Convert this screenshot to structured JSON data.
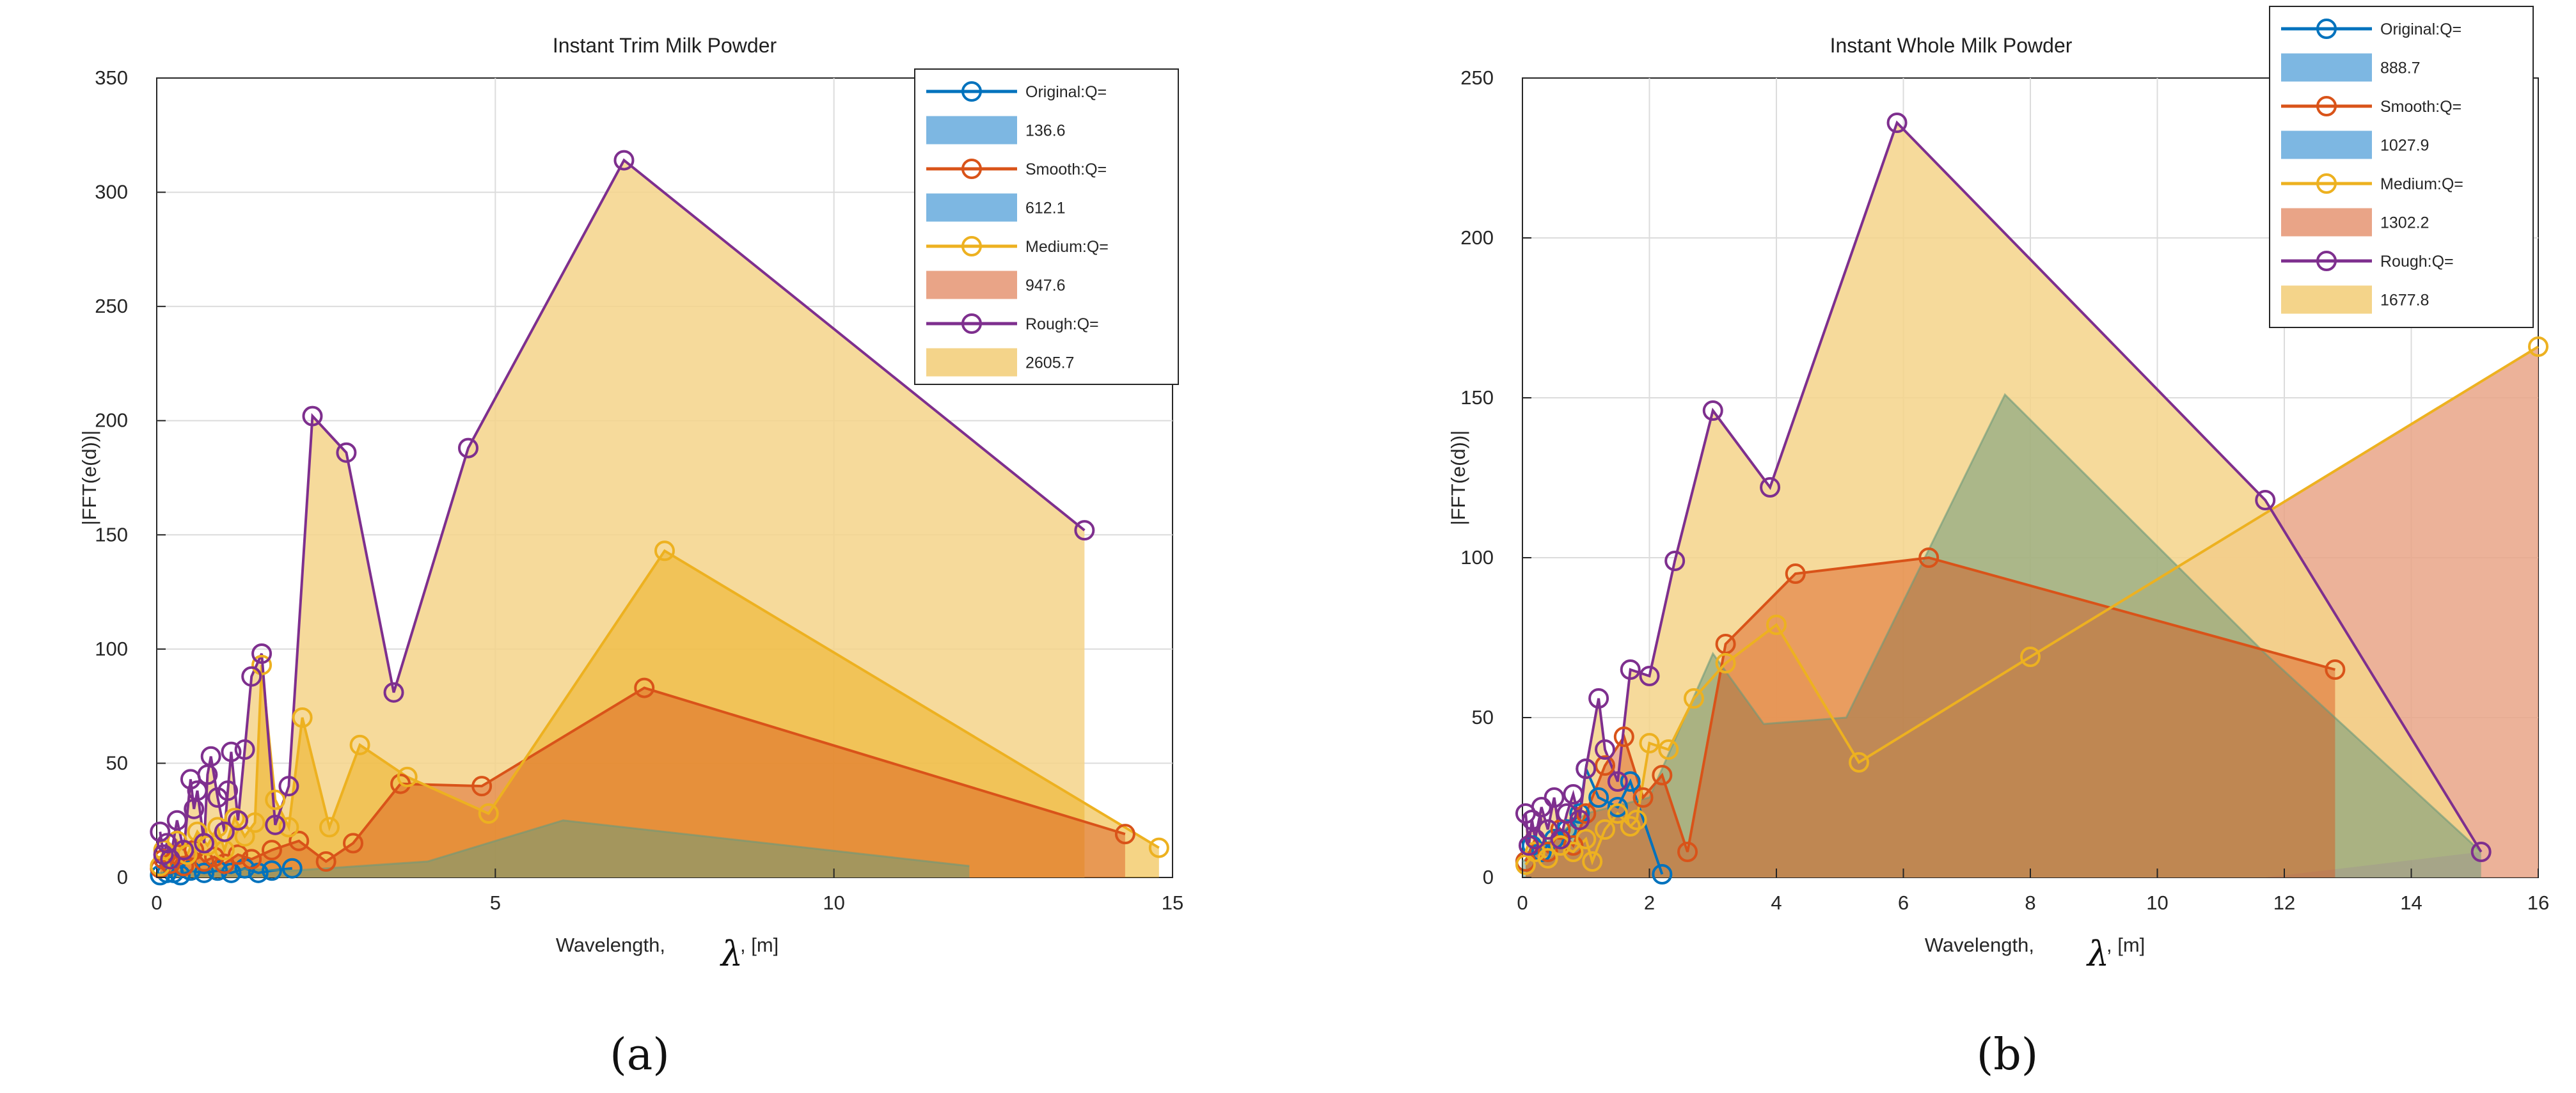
{
  "colors": {
    "original": "#0072BD",
    "smooth": "#D95319",
    "medium": "#EDB120",
    "rough": "#7E2F8E",
    "fill_blue": "#7DB7E2",
    "fill_red": "#E9A487",
    "fill_yellow": "#F4D48A",
    "fill_green": "#6E9A7A"
  },
  "chart_data": [
    {
      "panel": "a",
      "panel_label": "(a)",
      "type": "area",
      "title": "Instant Trim Milk Powder",
      "xlabel": "Wavelength,",
      "xlabel_symbol": "λ",
      "xlabel_unit": ", [m]",
      "ylabel": "|FFT(e(d))|",
      "xlim": [
        0,
        15
      ],
      "ylim": [
        0,
        350
      ],
      "xticks": [
        0,
        5,
        10,
        15
      ],
      "yticks": [
        0,
        50,
        100,
        150,
        200,
        250,
        300,
        350
      ],
      "grid": true,
      "legend_placement": "top-right",
      "legend": [
        {
          "line": "Original:Q=",
          "swatch": "136.6",
          "fill": "blue"
        },
        {
          "line": "Smooth:Q=",
          "swatch": "612.1",
          "fill": "blue"
        },
        {
          "line": "Medium:Q=",
          "swatch": "947.6",
          "fill": "red"
        },
        {
          "line": "Rough:Q=",
          "swatch": "2605.7",
          "fill": "yellow"
        }
      ],
      "series": [
        {
          "name": "Original",
          "color": "original",
          "x": [
            0.05,
            0.15,
            0.25,
            0.35,
            0.5,
            0.7,
            0.9,
            1.1,
            1.3,
            1.5,
            1.7,
            2.0
          ],
          "y": [
            1,
            2,
            2,
            1,
            3,
            2,
            3,
            2,
            4,
            2,
            3,
            4
          ]
        },
        {
          "name": "Smooth",
          "color": "smooth",
          "x": [
            0.05,
            0.1,
            0.2,
            0.3,
            0.4,
            0.55,
            0.7,
            0.85,
            1.0,
            1.2,
            1.4,
            1.7,
            2.1,
            2.5,
            2.9,
            3.6,
            4.8,
            7.2,
            14.3
          ],
          "y": [
            4,
            8,
            6,
            10,
            5,
            12,
            7,
            9,
            6,
            10,
            8,
            12,
            16,
            7,
            15,
            41,
            40,
            83,
            19
          ]
        },
        {
          "name": "Medium",
          "color": "medium",
          "x": [
            0.05,
            0.1,
            0.2,
            0.3,
            0.45,
            0.6,
            0.75,
            0.9,
            1.0,
            1.15,
            1.3,
            1.45,
            1.55,
            1.75,
            1.95,
            2.15,
            2.55,
            3.0,
            3.7,
            4.9,
            7.5,
            14.8
          ],
          "y": [
            5,
            12,
            8,
            16,
            10,
            20,
            14,
            22,
            12,
            26,
            18,
            24,
            93,
            34,
            22,
            70,
            22,
            58,
            44,
            28,
            143,
            13
          ]
        },
        {
          "name": "Green",
          "color": "fill_green",
          "no_markers": true,
          "fill": "green",
          "x": [
            0.0,
            1.0,
            2.0,
            3.0,
            4.0,
            6.0,
            12.0
          ],
          "y": [
            2,
            4,
            3,
            5,
            7,
            25,
            5
          ]
        },
        {
          "name": "Rough",
          "color": "rough",
          "x": [
            0.05,
            0.1,
            0.15,
            0.2,
            0.3,
            0.4,
            0.5,
            0.55,
            0.6,
            0.7,
            0.75,
            0.8,
            0.9,
            1.0,
            1.05,
            1.1,
            1.2,
            1.3,
            1.4,
            1.55,
            1.75,
            1.95,
            2.3,
            2.8,
            3.5,
            4.6,
            6.9,
            13.7
          ],
          "y": [
            20,
            10,
            15,
            8,
            25,
            12,
            43,
            30,
            38,
            15,
            45,
            53,
            35,
            20,
            38,
            55,
            25,
            56,
            88,
            98,
            23,
            40,
            202,
            186,
            81,
            188,
            314,
            152
          ]
        }
      ],
      "fills": [
        {
          "series": "Rough",
          "fill": "yellow",
          "to_x": 13.7
        },
        {
          "series": "Medium",
          "fill": "orange",
          "to_x": 14.8
        },
        {
          "series": "Smooth",
          "fill": "redorange",
          "to_x": 14.3
        },
        {
          "series": "Green",
          "fill": "green",
          "to_x": 12.0
        }
      ]
    },
    {
      "panel": "b",
      "panel_label": "(b)",
      "type": "area",
      "title": "Instant Whole Milk Powder",
      "xlabel": "Wavelength,",
      "xlabel_symbol": "λ",
      "xlabel_unit": ", [m]",
      "ylabel": "|FFT(e(d))|",
      "xlim": [
        0,
        16
      ],
      "ylim": [
        0,
        250
      ],
      "xticks": [
        0,
        2,
        4,
        6,
        8,
        10,
        12,
        14,
        16
      ],
      "yticks": [
        0,
        50,
        100,
        150,
        200,
        250
      ],
      "grid": true,
      "legend_placement": "top-right",
      "legend": [
        {
          "line": "Original:Q=",
          "swatch": "888.7",
          "fill": "blue"
        },
        {
          "line": "Smooth:Q=",
          "swatch": "1027.9",
          "fill": "blue"
        },
        {
          "line": "Medium:Q=",
          "swatch": "1302.2",
          "fill": "red"
        },
        {
          "line": "Rough:Q=",
          "swatch": "1677.8",
          "fill": "yellow"
        }
      ],
      "series": [
        {
          "name": "Original",
          "color": "original",
          "x": [
            0.05,
            0.15,
            0.3,
            0.5,
            0.7,
            0.9,
            1.0,
            1.2,
            1.5,
            1.7,
            2.2
          ],
          "y": [
            5,
            10,
            8,
            12,
            15,
            20,
            34,
            25,
            22,
            30,
            1
          ]
        },
        {
          "name": "Green",
          "color": "fill_green",
          "no_markers": true,
          "fill": "green",
          "x": [
            0.0,
            1.0,
            2.0,
            3.0,
            3.8,
            5.1,
            7.6,
            11.7,
            15.1
          ],
          "y": [
            5,
            20,
            25,
            70,
            48,
            50,
            151,
            70,
            8
          ]
        },
        {
          "name": "Smooth",
          "color": "smooth",
          "x": [
            0.05,
            0.2,
            0.4,
            0.6,
            0.8,
            1.0,
            1.3,
            1.6,
            1.9,
            2.2,
            2.6,
            3.2,
            4.3,
            6.4,
            12.8
          ],
          "y": [
            5,
            12,
            8,
            15,
            10,
            20,
            35,
            44,
            25,
            32,
            8,
            73,
            95,
            100,
            65
          ]
        },
        {
          "name": "Medium",
          "color": "medium",
          "x": [
            0.05,
            0.2,
            0.4,
            0.6,
            0.8,
            1.0,
            1.1,
            1.3,
            1.5,
            1.7,
            1.8,
            2.0,
            2.3,
            2.7,
            3.2,
            4.0,
            5.3,
            8.0,
            16.0
          ],
          "y": [
            4,
            8,
            6,
            10,
            8,
            12,
            5,
            15,
            20,
            16,
            18,
            42,
            40,
            56,
            67,
            79,
            36,
            69,
            166
          ]
        },
        {
          "name": "Rough",
          "color": "rough",
          "x": [
            0.05,
            0.1,
            0.15,
            0.2,
            0.3,
            0.4,
            0.5,
            0.6,
            0.7,
            0.8,
            0.9,
            1.0,
            1.2,
            1.3,
            1.5,
            1.7,
            2.0,
            2.4,
            3.0,
            3.9,
            5.9,
            11.7,
            15.1
          ],
          "y": [
            20,
            10,
            18,
            12,
            22,
            15,
            25,
            12,
            20,
            26,
            18,
            34,
            56,
            40,
            30,
            65,
            63,
            99,
            146,
            122,
            236,
            118,
            8
          ]
        }
      ],
      "fills": [
        {
          "series": "Medium",
          "fill": "red",
          "to_x": 16.0
        },
        {
          "series": "Rough",
          "fill": "yellow",
          "to_x": 11.7
        },
        {
          "series": "Green",
          "fill": "green",
          "to_x": 15.1
        },
        {
          "series": "Smooth",
          "fill": "redorange",
          "to_x": 12.8
        }
      ]
    }
  ]
}
